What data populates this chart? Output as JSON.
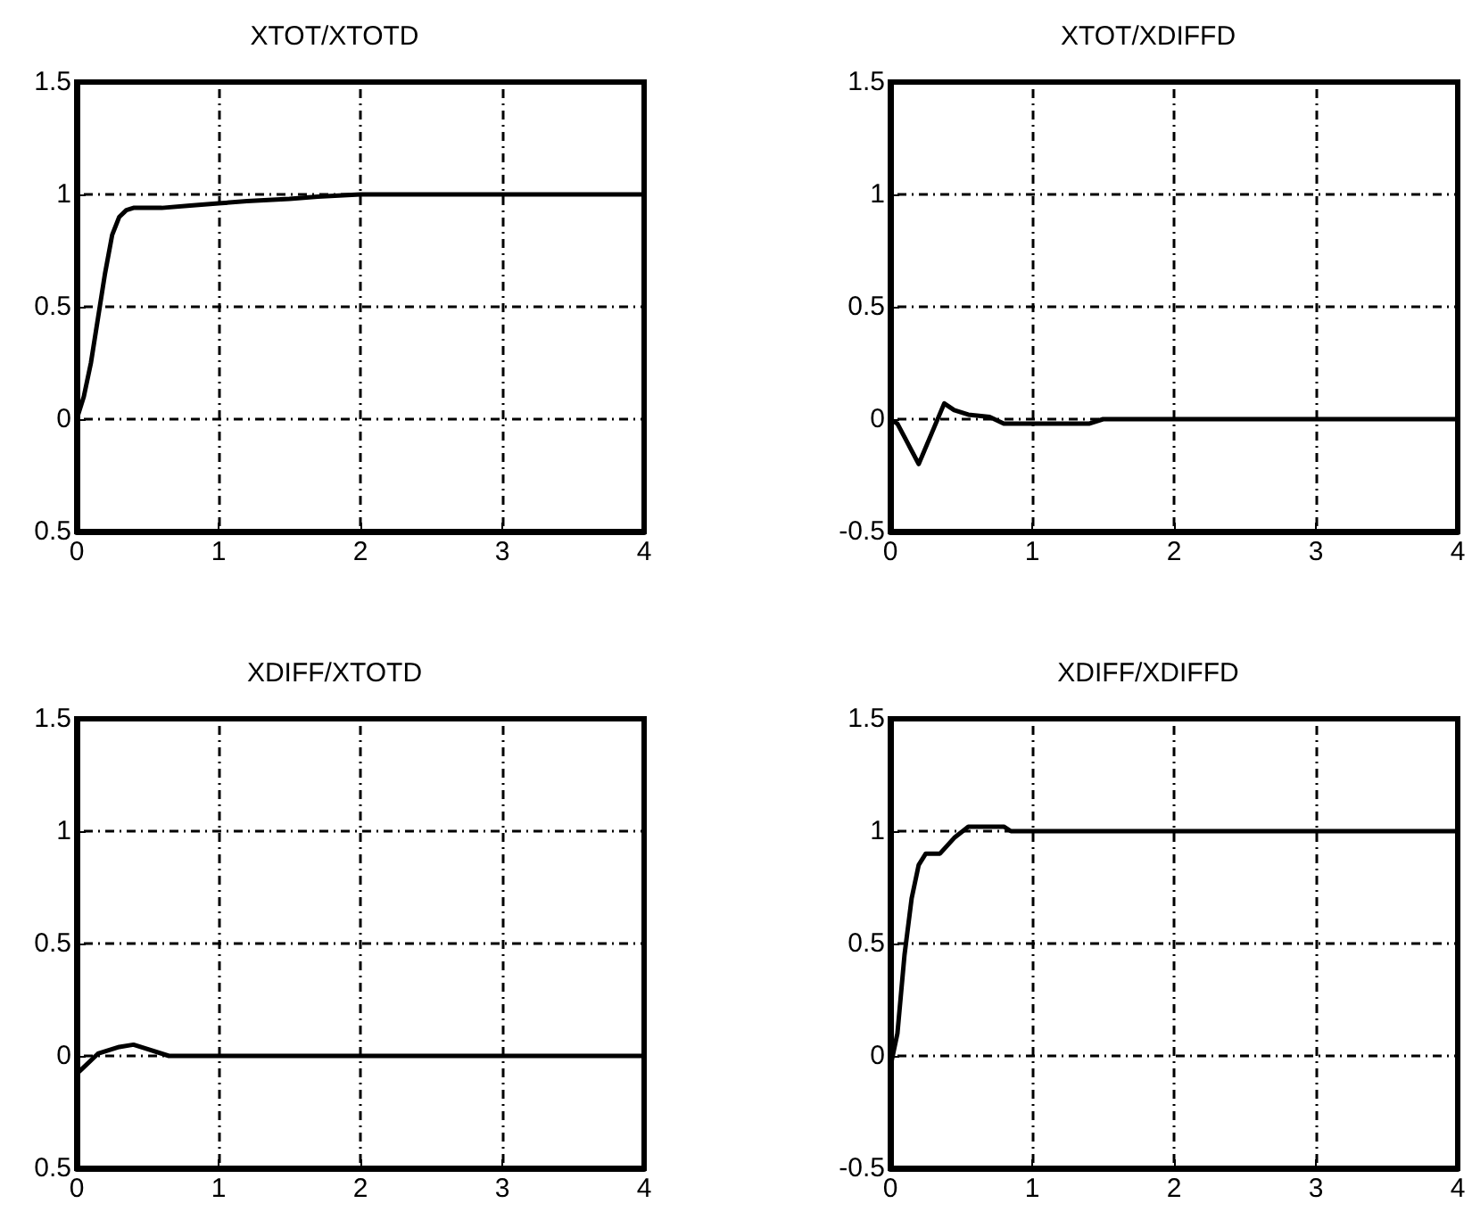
{
  "chart_data": [
    {
      "type": "line",
      "title": "XTOT/XTOTD",
      "xlim": [
        0,
        4
      ],
      "xticks": [
        0,
        1,
        2,
        3,
        4
      ],
      "ylim": [
        -0.5,
        1.5
      ],
      "yticks": [
        {
          "value": -0.5,
          "label": "0.5"
        },
        0,
        0.5,
        1,
        1.5
      ],
      "grid": true,
      "series": [
        {
          "color": "#000000",
          "x": [
            0,
            0.05,
            0.1,
            0.15,
            0.2,
            0.25,
            0.3,
            0.35,
            0.4,
            0.6,
            0.8,
            1,
            1.2,
            1.5,
            1.7,
            2,
            4
          ],
          "values": [
            0,
            0.1,
            0.25,
            0.45,
            0.65,
            0.82,
            0.9,
            0.93,
            0.94,
            0.94,
            0.95,
            0.96,
            0.97,
            0.98,
            0.99,
            1,
            1
          ]
        }
      ]
    },
    {
      "type": "line",
      "title": "XTOT/XDIFFD",
      "xlim": [
        0,
        4
      ],
      "xticks": [
        0,
        1,
        2,
        3,
        4
      ],
      "ylim": [
        -0.5,
        1.5
      ],
      "yticks": [
        -0.5,
        0,
        0.5,
        1,
        1.5
      ],
      "grid": true,
      "series": [
        {
          "color": "#000000",
          "x": [
            0,
            0.05,
            0.1,
            0.2,
            0.3,
            0.38,
            0.45,
            0.55,
            0.7,
            0.8,
            1.4,
            1.5,
            4
          ],
          "values": [
            0,
            -0.02,
            -0.08,
            -0.2,
            -0.05,
            0.07,
            0.04,
            0.02,
            0.01,
            -0.02,
            -0.02,
            0,
            0
          ]
        }
      ]
    },
    {
      "type": "line",
      "title": "XDIFF/XTOTD",
      "xlim": [
        0,
        4
      ],
      "xticks": [
        0,
        1,
        2,
        3,
        4
      ],
      "ylim": [
        -0.5,
        1.5
      ],
      "yticks": [
        {
          "value": -0.5,
          "label": "0.5"
        },
        0,
        0.5,
        1,
        1.5
      ],
      "grid": true,
      "series": [
        {
          "color": "#000000",
          "x": [
            0,
            0.05,
            0.15,
            0.3,
            0.4,
            0.5,
            0.65,
            4
          ],
          "values": [
            -0.08,
            -0.05,
            0.01,
            0.04,
            0.05,
            0.03,
            0,
            0
          ]
        }
      ]
    },
    {
      "type": "line",
      "title": "XDIFF/XDIFFD",
      "xlim": [
        0,
        4
      ],
      "xticks": [
        0,
        1,
        2,
        3,
        4
      ],
      "ylim": [
        -0.5,
        1.5
      ],
      "yticks": [
        -0.5,
        0,
        0.5,
        1,
        1.5
      ],
      "grid": true,
      "series": [
        {
          "color": "#000000",
          "x": [
            0,
            0.05,
            0.1,
            0.15,
            0.2,
            0.25,
            0.35,
            0.45,
            0.55,
            0.8,
            0.85,
            4
          ],
          "values": [
            -0.05,
            0.1,
            0.45,
            0.7,
            0.85,
            0.9,
            0.9,
            0.97,
            1.02,
            1.02,
            1,
            1
          ]
        }
      ]
    }
  ]
}
